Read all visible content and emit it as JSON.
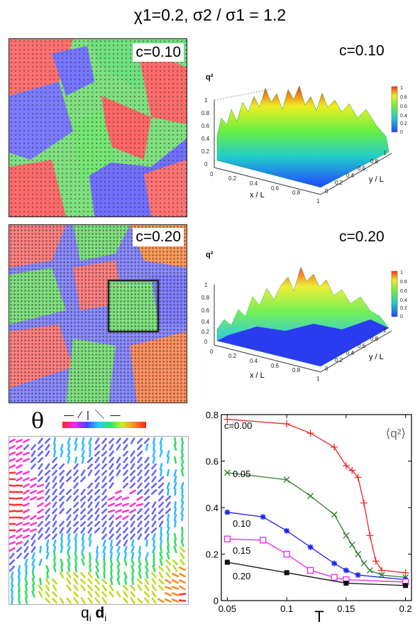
{
  "title": "χ1=0.2, σ2 / σ1 = 1.2",
  "panels": {
    "top_left_label": "c=0.10",
    "top_right_label": "c=0.10",
    "mid_left_label": "c=0.20",
    "mid_right_label": "c=0.20"
  },
  "surface": {
    "zlabel": "q²",
    "xlabel": "x / L",
    "ylabel": "y / L",
    "z_ticks": [
      "1",
      "0.8",
      "0.6",
      "0.4",
      "0.2",
      "0"
    ],
    "x_ticks": [
      "0",
      "0.2",
      "0.4",
      "0.6",
      "0.8",
      "1"
    ],
    "y_ticks": [
      "0",
      "0.2",
      "0.4",
      "0.6",
      "0.8",
      "1"
    ],
    "colorbar_ticks": [
      "1",
      "0.8",
      "0.6",
      "0.4",
      "0.2",
      "0"
    ]
  },
  "orientation": {
    "theta_symbol": "θ",
    "glyphs": "— ⁄ | ＼ —",
    "xlabel": "q",
    "xlabel_sub": "i",
    "xlabel2": "d",
    "xlabel2_sub": "i"
  },
  "chart_data": {
    "type": "line",
    "title": "⟨q²⟩",
    "xlabel": "T",
    "ylabel": "",
    "xlim": [
      0.045,
      0.205
    ],
    "ylim": [
      0,
      0.8
    ],
    "x_ticks": [
      "0.05",
      "0.1",
      "0.15",
      "0.2"
    ],
    "y_ticks": [
      "0",
      "0.2",
      "0.4",
      "0.6",
      "0.8"
    ],
    "series": [
      {
        "name": "c=0.00",
        "color": "#ee2222",
        "marker": "plus",
        "x": [
          0.05,
          0.1,
          0.12,
          0.14,
          0.15,
          0.155,
          0.16,
          0.165,
          0.17,
          0.175,
          0.18,
          0.2
        ],
        "y": [
          0.78,
          0.76,
          0.72,
          0.66,
          0.58,
          0.56,
          0.53,
          0.42,
          0.28,
          0.17,
          0.13,
          0.12
        ]
      },
      {
        "name": "0.05",
        "color": "#2e7d2e",
        "marker": "x",
        "x": [
          0.05,
          0.1,
          0.12,
          0.14,
          0.15,
          0.155,
          0.16,
          0.165,
          0.17,
          0.18,
          0.2
        ],
        "y": [
          0.55,
          0.52,
          0.45,
          0.37,
          0.28,
          0.24,
          0.2,
          0.16,
          0.13,
          0.11,
          0.1
        ]
      },
      {
        "name": "0.10",
        "color": "#1a22ee",
        "marker": "asterisk",
        "x": [
          0.05,
          0.08,
          0.1,
          0.12,
          0.14,
          0.15,
          0.16,
          0.2
        ],
        "y": [
          0.38,
          0.36,
          0.3,
          0.23,
          0.16,
          0.13,
          0.11,
          0.09
        ]
      },
      {
        "name": "0.15",
        "color": "#ee22ee",
        "marker": "square-open",
        "x": [
          0.05,
          0.08,
          0.1,
          0.12,
          0.14,
          0.15,
          0.2
        ],
        "y": [
          0.265,
          0.26,
          0.2,
          0.13,
          0.1,
          0.09,
          0.08
        ]
      },
      {
        "name": "0.20",
        "color": "#111111",
        "marker": "square",
        "x": [
          0.05,
          0.1,
          0.15,
          0.2
        ],
        "y": [
          0.165,
          0.12,
          0.075,
          0.065
        ]
      }
    ]
  }
}
